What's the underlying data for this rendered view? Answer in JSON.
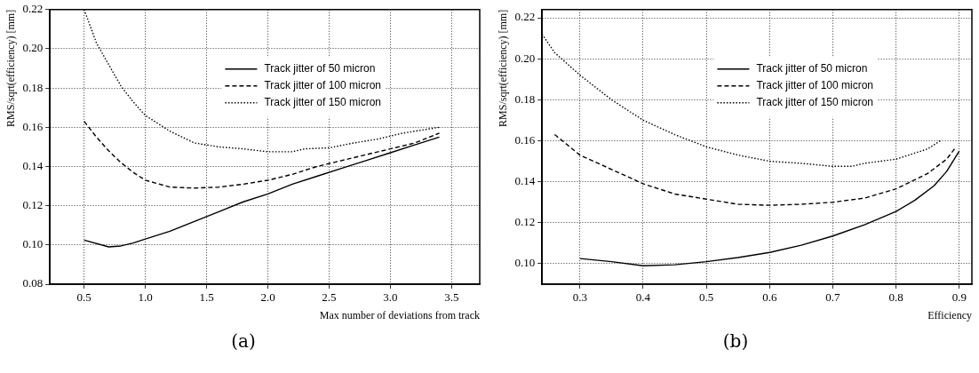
{
  "chart_data": [
    {
      "type": "line",
      "xlabel": "Max number of deviations from track",
      "ylabel": "RMS/sqrt(efficiency) [mm]",
      "annotations": [
        "(a)"
      ],
      "xlim": [
        0.22,
        3.73
      ],
      "ylim": [
        0.08,
        0.22
      ],
      "xticks": [
        0.5,
        {
          "value": 1,
          "label": "1.0"
        },
        1.5,
        {
          "value": 2,
          "label": "2.0"
        },
        2.5,
        {
          "value": 3,
          "label": "3.0"
        },
        3.5
      ],
      "yticks": [
        {
          "value": 0.08,
          "label": "0.08"
        },
        {
          "value": 0.1,
          "label": "0.10"
        },
        {
          "value": 0.12,
          "label": "0.12"
        },
        {
          "value": 0.14,
          "label": "0.14"
        },
        {
          "value": 0.16,
          "label": "0.16"
        },
        {
          "value": 0.18,
          "label": "0.18"
        },
        {
          "value": 0.2,
          "label": "0.20"
        },
        {
          "value": 0.22,
          "label": "0.22"
        }
      ],
      "grid": true,
      "legend": "top right",
      "marker": "none",
      "series": [
        {
          "name": "Track jitter of 50 micron",
          "color": "#000000",
          "line_style": "solid",
          "x": [
            0.5,
            0.7,
            0.8,
            0.9,
            1.0,
            1.2,
            1.4,
            1.6,
            1.8,
            2.0,
            2.2,
            2.4,
            2.6,
            2.8,
            3.0,
            3.2,
            3.4
          ],
          "values": [
            0.1025,
            0.099,
            0.0995,
            0.101,
            0.103,
            0.107,
            0.112,
            0.117,
            0.122,
            0.126,
            0.131,
            0.135,
            0.139,
            0.143,
            0.147,
            0.151,
            0.155
          ]
        },
        {
          "name": "Track jitter of 100 micron",
          "color": "#000000",
          "line_style": "dashed",
          "x": [
            0.5,
            0.6,
            0.7,
            0.8,
            0.9,
            1.0,
            1.2,
            1.4,
            1.6,
            1.8,
            2.0,
            2.2,
            2.4,
            2.6,
            2.8,
            3.0,
            3.2,
            3.4
          ],
          "values": [
            0.163,
            0.155,
            0.148,
            0.142,
            0.137,
            0.133,
            0.1295,
            0.129,
            0.1295,
            0.131,
            0.133,
            0.136,
            0.14,
            0.143,
            0.146,
            0.149,
            0.152,
            0.157
          ]
        },
        {
          "name": "Track jitter of 150 micron",
          "color": "#000000",
          "line_style": "dotted",
          "x": [
            0.5,
            0.6,
            0.7,
            0.8,
            0.9,
            1.0,
            1.2,
            1.4,
            1.6,
            1.8,
            2.0,
            2.2,
            2.3,
            2.5,
            2.7,
            2.9,
            3.1,
            3.4
          ],
          "values": [
            0.22,
            0.203,
            0.192,
            0.181,
            0.173,
            0.166,
            0.158,
            0.152,
            0.15,
            0.149,
            0.1475,
            0.1475,
            0.149,
            0.1495,
            0.152,
            0.154,
            0.157,
            0.16
          ]
        }
      ]
    },
    {
      "type": "line",
      "xlabel": "Efficiency",
      "ylabel": "RMS/sqrt(efficiency) [mm]",
      "annotations": [
        "(b)"
      ],
      "xlim": [
        0.24,
        0.92
      ],
      "ylim": [
        0.09,
        0.224
      ],
      "xticks": [
        0.3,
        0.4,
        0.5,
        0.6,
        0.7,
        0.8,
        0.9
      ],
      "yticks": [
        {
          "value": 0.1,
          "label": "0.10"
        },
        {
          "value": 0.12,
          "label": "0.12"
        },
        {
          "value": 0.14,
          "label": "0.14"
        },
        {
          "value": 0.16,
          "label": "0.16"
        },
        {
          "value": 0.18,
          "label": "0.18"
        },
        {
          "value": 0.2,
          "label": "0.20"
        },
        {
          "value": 0.22,
          "label": "0.22"
        }
      ],
      "grid": true,
      "legend": "top right",
      "marker": "none",
      "series": [
        {
          "name": "Track jitter of 50 micron",
          "color": "#000000",
          "line_style": "solid",
          "x": [
            0.3,
            0.35,
            0.4,
            0.45,
            0.5,
            0.55,
            0.6,
            0.65,
            0.7,
            0.75,
            0.8,
            0.83,
            0.86,
            0.88,
            0.9
          ],
          "values": [
            0.1025,
            0.101,
            0.099,
            0.0995,
            0.101,
            0.103,
            0.1055,
            0.109,
            0.1135,
            0.119,
            0.1255,
            0.131,
            0.138,
            0.145,
            0.155
          ]
        },
        {
          "name": "Track jitter of 100 micron",
          "color": "#000000",
          "line_style": "dashed",
          "x": [
            0.26,
            0.3,
            0.35,
            0.4,
            0.45,
            0.5,
            0.55,
            0.6,
            0.65,
            0.7,
            0.75,
            0.8,
            0.85,
            0.88,
            0.895
          ],
          "values": [
            0.163,
            0.153,
            0.146,
            0.139,
            0.134,
            0.1315,
            0.129,
            0.1285,
            0.129,
            0.13,
            0.132,
            0.1365,
            0.144,
            0.151,
            0.157
          ]
        },
        {
          "name": "Track jitter of 150 micron",
          "color": "#000000",
          "line_style": "dotted",
          "x": [
            0.24,
            0.26,
            0.3,
            0.35,
            0.4,
            0.45,
            0.5,
            0.55,
            0.6,
            0.65,
            0.7,
            0.73,
            0.75,
            0.8,
            0.85,
            0.87
          ],
          "values": [
            0.212,
            0.203,
            0.192,
            0.18,
            0.17,
            0.163,
            0.157,
            0.153,
            0.15,
            0.149,
            0.1475,
            0.1475,
            0.149,
            0.151,
            0.156,
            0.16
          ]
        }
      ]
    }
  ]
}
